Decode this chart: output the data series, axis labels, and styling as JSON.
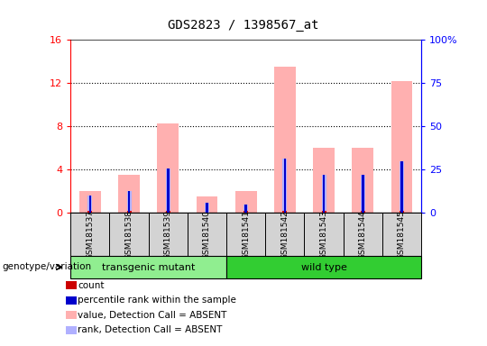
{
  "title": "GDS2823 / 1398567_at",
  "samples": [
    "GSM181537",
    "GSM181538",
    "GSM181539",
    "GSM181540",
    "GSM181541",
    "GSM181542",
    "GSM181543",
    "GSM181544",
    "GSM181545"
  ],
  "absent_value_values": [
    2.0,
    3.5,
    8.3,
    1.5,
    2.0,
    13.5,
    6.0,
    6.0,
    12.2
  ],
  "absent_rank_values": [
    1.6,
    2.0,
    4.1,
    0.9,
    0.8,
    5.0,
    3.5,
    3.5,
    4.8
  ],
  "count_values": [
    0.18,
    0.18,
    0.18,
    0.0,
    0.18,
    0.18,
    0.18,
    0.18,
    0.18
  ],
  "percentile_values": [
    1.6,
    2.0,
    4.1,
    0.9,
    0.8,
    5.0,
    3.5,
    3.5,
    4.8
  ],
  "ylim_left": [
    0,
    16
  ],
  "ylim_right": [
    0,
    100
  ],
  "yticks_left": [
    0,
    4,
    8,
    12,
    16
  ],
  "yticks_right": [
    0,
    25,
    50,
    75,
    100
  ],
  "yticklabels_right": [
    "0",
    "25",
    "50",
    "75",
    "100%"
  ],
  "color_count": "#cc0000",
  "color_percentile": "#0000cc",
  "color_absent_value": "#ffb0b0",
  "color_absent_rank": "#b0b0ff",
  "genotype_label": "genotype/variation",
  "group_info": [
    {
      "label": "transgenic mutant",
      "start": 0,
      "end": 3,
      "color": "#90EE90"
    },
    {
      "label": "wild type",
      "start": 4,
      "end": 8,
      "color": "#32CD32"
    }
  ],
  "legend_items": [
    {
      "color": "#cc0000",
      "label": "count"
    },
    {
      "color": "#0000cc",
      "label": "percentile rank within the sample"
    },
    {
      "color": "#ffb0b0",
      "label": "value, Detection Call = ABSENT"
    },
    {
      "color": "#b0b0ff",
      "label": "rank, Detection Call = ABSENT"
    }
  ]
}
